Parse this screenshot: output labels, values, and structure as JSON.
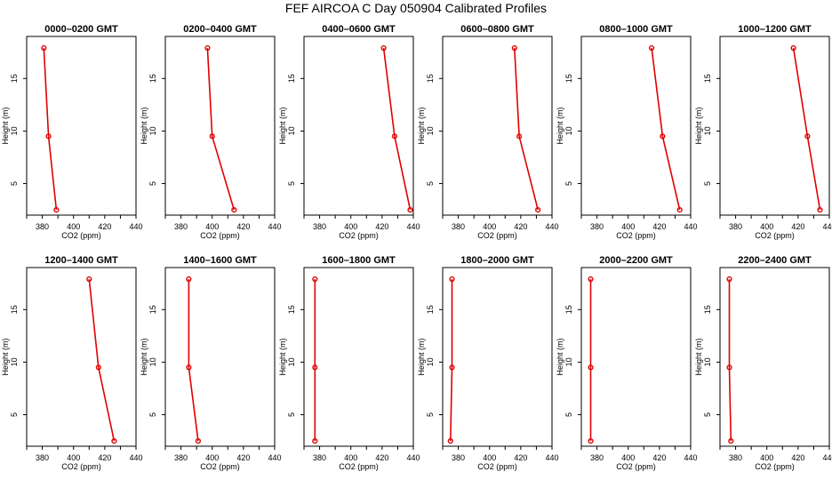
{
  "title": "FEF AIRCOA C  Day 050904  Calibrated Profiles",
  "colors": {
    "profile": "#e00000",
    "axes": "#000000",
    "background": "#ffffff"
  },
  "chart_data": {
    "type": "line",
    "title": "FEF AIRCOA C  Day 050904  Calibrated Profiles",
    "xlabel": "CO2 (ppm)",
    "ylabel": "Height (m)",
    "xlim": [
      370,
      440
    ],
    "ylim": [
      2,
      19
    ],
    "xticks": [
      380,
      400,
      420,
      440
    ],
    "yticks": [
      5,
      10,
      15
    ],
    "heights": [
      17.9,
      9.5,
      2.5
    ],
    "panels": [
      {
        "title": "0000–0200 GMT",
        "co2": [
          381,
          384,
          389
        ]
      },
      {
        "title": "0200–0400 GMT",
        "co2": [
          397,
          400,
          414
        ]
      },
      {
        "title": "0400–0600 GMT",
        "co2": [
          421,
          428,
          438
        ]
      },
      {
        "title": "0600–0800 GMT",
        "co2": [
          416,
          419,
          431
        ]
      },
      {
        "title": "0800–1000 GMT",
        "co2": [
          415,
          422,
          433
        ]
      },
      {
        "title": "1000–1200 GMT",
        "co2": [
          417,
          426,
          434
        ]
      },
      {
        "title": "1200–1400 GMT",
        "co2": [
          410,
          416,
          426
        ]
      },
      {
        "title": "1400–1600 GMT",
        "co2": [
          385,
          385,
          391
        ]
      },
      {
        "title": "1600–1800 GMT",
        "co2": [
          377,
          377,
          377
        ]
      },
      {
        "title": "1800–2000 GMT",
        "co2": [
          376,
          376,
          375
        ]
      },
      {
        "title": "2000–2200 GMT",
        "co2": [
          376,
          376,
          376
        ]
      },
      {
        "title": "2200–2400 GMT",
        "co2": [
          376,
          376,
          377
        ]
      }
    ]
  }
}
